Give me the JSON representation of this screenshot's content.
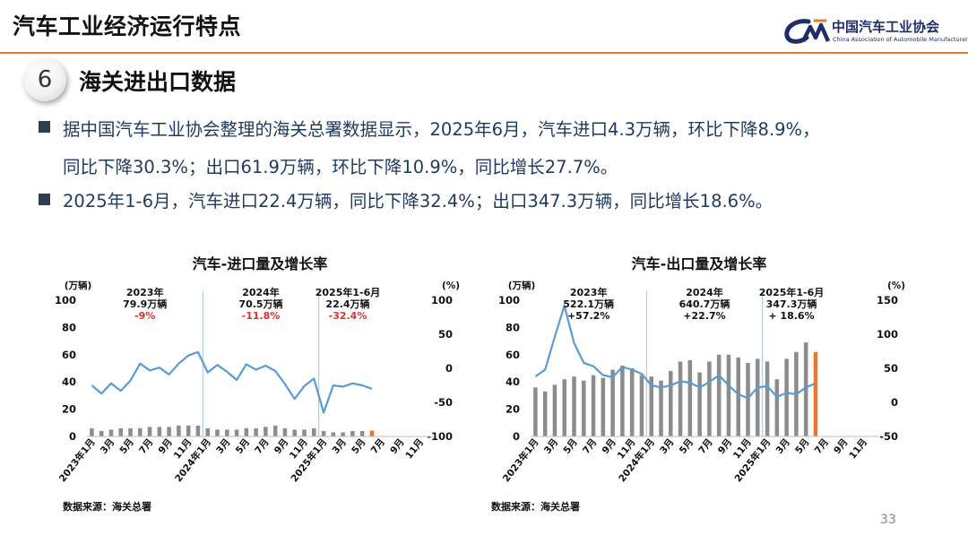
{
  "header": {
    "title": "汽车工业经济运行特点",
    "logo_cn": "中国汽车工业协会",
    "logo_en": "China Association of Automobile Manufacturers"
  },
  "section": {
    "number": "6",
    "title": "海关进出口数据"
  },
  "bullets": [
    {
      "line1": "据中国汽车工业协会整理的海关总署数据显示，2025年6月，汽车进口4.3万辆，环比下降8.9%，",
      "line2": "同比下降30.3%；出口61.9万辆，环比下降10.9%，同比增长27.7%。"
    },
    {
      "line1": "2025年1-6月，汽车进口22.4万辆，同比下降32.4%；出口347.3万辆，同比增长18.6%。"
    }
  ],
  "page_number": "33",
  "colors": {
    "bar": "#8c8c8c",
    "bar_highlight": "#e8782a",
    "line": "#5b9bd5",
    "negative": "#e03030",
    "divider": "#9dc3e6"
  },
  "chart_data": [
    {
      "type": "bar+line",
      "title": "汽车-进口量及增长率",
      "ylabel_left": "(万辆)",
      "ylabel_right": "(%)",
      "ylim_left": [
        0,
        100
      ],
      "yticks_left": [
        "0",
        "20",
        "40",
        "60",
        "80",
        "100"
      ],
      "ylim_right": [
        -100,
        100
      ],
      "yticks_right": [
        "-100",
        "-50",
        "0",
        "50",
        "100"
      ],
      "x_ticks": [
        "2023年1月",
        "3月",
        "5月",
        "7月",
        "9月",
        "11月",
        "2024年1月",
        "3月",
        "5月",
        "7月",
        "9月",
        "11月",
        "2025年1月",
        "3月",
        "5月",
        "7月",
        "9月",
        "11月"
      ],
      "n_slots": 36,
      "bars": [
        6,
        4,
        5,
        6,
        6,
        6,
        7,
        7,
        7,
        8,
        8,
        8,
        6,
        5,
        5,
        5,
        6,
        6,
        7,
        8,
        6,
        5,
        5,
        6,
        4,
        3,
        3,
        4,
        4,
        4.3
      ],
      "line": [
        -25,
        -37,
        -22,
        -33,
        -18,
        7,
        -3,
        1,
        -9,
        7,
        19,
        24,
        -6,
        5,
        -5,
        -17,
        6,
        -2,
        4,
        -4,
        -23,
        -45,
        -26,
        -15,
        -65,
        -25,
        -27,
        -22,
        -25,
        -30
      ],
      "highlight_index": 29,
      "annotations": [
        {
          "l1": "2023年",
          "l2": "79.9万辆",
          "l3": "-9%",
          "negative": true
        },
        {
          "l1": "2024年",
          "l2": "70.5万辆",
          "l3": "-11.8%",
          "negative": true
        },
        {
          "l1": "2025年1-6月",
          "l2": "22.4万辆",
          "l3": "-32.4%",
          "negative": true
        }
      ],
      "source": "数据来源：海关总署"
    },
    {
      "type": "bar+line",
      "title": "汽车-出口量及增长率",
      "ylabel_left": "(万辆)",
      "ylabel_right": "(%)",
      "ylim_left": [
        0,
        100
      ],
      "yticks_left": [
        "0",
        "20",
        "40",
        "60",
        "80",
        "100"
      ],
      "ylim_right": [
        -50,
        150
      ],
      "yticks_right": [
        "-50",
        "0",
        "50",
        "100",
        "150"
      ],
      "x_ticks": [
        "2023年1月",
        "3月",
        "5月",
        "7月",
        "9月",
        "11月",
        "2024年1月",
        "3月",
        "5月",
        "7月",
        "9月",
        "11月",
        "2025年1月",
        "3月",
        "5月",
        "7月",
        "9月",
        "11月"
      ],
      "n_slots": 36,
      "bars": [
        36,
        33,
        38,
        42,
        44,
        41,
        45,
        43,
        49,
        52,
        50,
        45,
        44,
        41,
        48,
        55,
        56,
        47,
        55,
        60,
        60,
        58,
        54,
        57,
        55,
        42,
        57,
        62,
        69,
        62
      ],
      "line": [
        38,
        48,
        96,
        142,
        87,
        58,
        53,
        40,
        37,
        52,
        48,
        42,
        25,
        22,
        25,
        31,
        29,
        22,
        30,
        40,
        25,
        12,
        6,
        22,
        24,
        8,
        14,
        12,
        22,
        28
      ],
      "highlight_index": 29,
      "annotations": [
        {
          "l1": "2023年",
          "l2": "522.1万辆",
          "l3": "+57.2%",
          "negative": false
        },
        {
          "l1": "2024年",
          "l2": "640.7万辆",
          "l3": "+22.7%",
          "negative": false
        },
        {
          "l1": "2025年1-6月",
          "l2": "347.3万辆",
          "l3": "+ 18.6%",
          "negative": false
        }
      ],
      "source": "数据来源：海关总署"
    }
  ]
}
